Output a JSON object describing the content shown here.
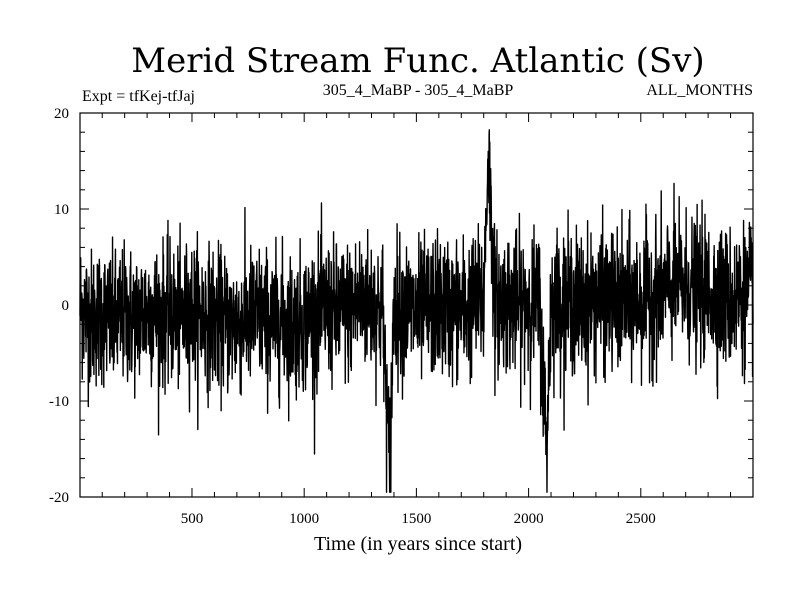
{
  "chart_data": {
    "type": "line",
    "title": "Merid Stream Func. Atlantic (Sv)",
    "subtitle_left": "Expt = tfKej-tfJaj",
    "subtitle_center": "305_4_MaBP - 305_4_MaBP",
    "subtitle_right": "ALL_MONTHS",
    "xlabel": "Time (in years since start)",
    "ylabel": "",
    "xlim": [
      1,
      3000
    ],
    "ylim": [
      -20,
      20
    ],
    "x_ticks": [
      500,
      1000,
      1500,
      2000,
      2500
    ],
    "y_ticks": [
      -20,
      -10,
      0,
      10,
      20
    ],
    "grid": false,
    "series_color": "#000000",
    "series_description": "annual values, one per year from year 1 to 3000, fluctuating roughly between -10 and +10 Sv",
    "x": [
      1,
      50,
      100,
      150,
      200,
      250,
      300,
      350,
      400,
      450,
      500,
      550,
      600,
      650,
      700,
      750,
      800,
      850,
      900,
      950,
      1000,
      1050,
      1100,
      1150,
      1200,
      1250,
      1300,
      1350,
      1380,
      1400,
      1450,
      1500,
      1550,
      1600,
      1650,
      1700,
      1750,
      1800,
      1820,
      1850,
      1900,
      1950,
      2000,
      2050,
      2080,
      2100,
      2150,
      2200,
      2250,
      2300,
      2350,
      2400,
      2450,
      2500,
      2550,
      2600,
      2650,
      2700,
      2750,
      2800,
      2850,
      2900,
      2950,
      3000
    ],
    "series": [
      {
        "values": [
          0.0,
          -1.5,
          -1.0,
          -2.0,
          -1.0,
          -1.5,
          -0.5,
          -1.0,
          -1.0,
          -1.5,
          -0.5,
          -1.0,
          -1.5,
          -2.0,
          -2.0,
          -1.5,
          -1.0,
          -2.0,
          -1.5,
          -2.0,
          -1.5,
          -1.0,
          -0.5,
          -1.0,
          -0.5,
          0.5,
          0.0,
          -0.5,
          -17.2,
          0.0,
          -0.5,
          -1.0,
          -0.5,
          0.0,
          -0.5,
          -0.5,
          0.0,
          0.5,
          16.0,
          0.0,
          0.5,
          0.0,
          0.5,
          0.0,
          -15.0,
          0.5,
          0.5,
          0.5,
          0.0,
          0.5,
          0.5,
          0.0,
          0.5,
          0.5,
          1.0,
          1.5,
          2.0,
          2.0,
          1.5,
          1.5,
          1.0,
          0.5,
          1.0,
          1.0
        ]
      }
    ]
  }
}
